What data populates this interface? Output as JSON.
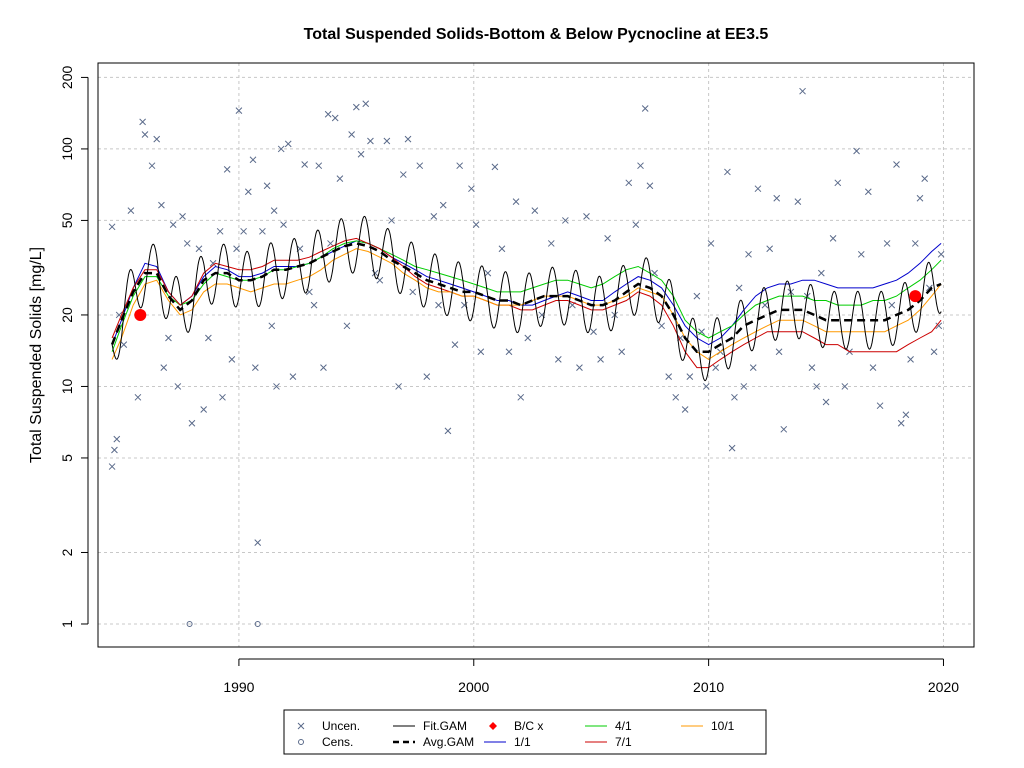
{
  "chart_data": {
    "type": "scatter",
    "title": "Total Suspended Solids-Bottom & Below Pycnocline at EE3.5",
    "ylabel": "Total Suspended Solids [mg/L]",
    "xlabel": "",
    "y_scale": "log",
    "xlim": [
      1984,
      2021.3
    ],
    "ylim": [
      0.8,
      230
    ],
    "x_ticks": [
      1990,
      2000,
      2010,
      2020
    ],
    "y_ticks": [
      1,
      2,
      5,
      10,
      20,
      50,
      100,
      200
    ],
    "grid": true,
    "legend_placement": "bottom",
    "legend": [
      {
        "label": "Uncen.",
        "symbol": "x",
        "color": "#5a6a8a"
      },
      {
        "label": "Cens.",
        "symbol": "circle",
        "color": "#5a6a8a"
      },
      {
        "label": "Fit.GAM",
        "symbol": "line",
        "color": "#000000"
      },
      {
        "label": "Avg.GAM",
        "symbol": "dashed",
        "color": "#000000"
      },
      {
        "label": "B/C x",
        "symbol": "diamond",
        "color": "#ff0000"
      },
      {
        "label": "1/1",
        "symbol": "line",
        "color": "#0000cc"
      },
      {
        "label": "4/1",
        "symbol": "line",
        "color": "#00cc00"
      },
      {
        "label": "7/1",
        "symbol": "line",
        "color": "#cc0000"
      },
      {
        "label": "10/1",
        "symbol": "line",
        "color": "#ff9900"
      }
    ],
    "colors": {
      "points": "#5a6a8a",
      "fit": "#000000",
      "avg": "#000000",
      "bc": "#ff0000",
      "s1": "#0000cc",
      "s4": "#00cc00",
      "s7": "#cc0000",
      "s10": "#ff9900"
    },
    "baseline_change_points": [
      {
        "x": 1985.8,
        "y": 20.0
      },
      {
        "x": 2018.8,
        "y": 24.0
      }
    ],
    "censored_points": [
      {
        "x": 1987.9,
        "y": 1.0
      },
      {
        "x": 1990.8,
        "y": 1.0
      }
    ],
    "uncensored_points": [
      [
        1984.6,
        4.6
      ],
      [
        1984.7,
        5.4
      ],
      [
        1984.8,
        6.0
      ],
      [
        1984.6,
        47
      ],
      [
        1984.9,
        20
      ],
      [
        1985.1,
        15
      ],
      [
        1985.4,
        55
      ],
      [
        1985.7,
        9
      ],
      [
        1985.9,
        130
      ],
      [
        1986.0,
        115
      ],
      [
        1986.3,
        85
      ],
      [
        1986.5,
        110
      ],
      [
        1986.7,
        58
      ],
      [
        1986.8,
        12
      ],
      [
        1987.0,
        16
      ],
      [
        1987.2,
        48
      ],
      [
        1987.4,
        10
      ],
      [
        1987.6,
        52
      ],
      [
        1987.8,
        40
      ],
      [
        1988.0,
        7.0
      ],
      [
        1988.3,
        38
      ],
      [
        1988.5,
        8
      ],
      [
        1988.7,
        16
      ],
      [
        1988.9,
        33
      ],
      [
        1989.2,
        45
      ],
      [
        1989.3,
        9
      ],
      [
        1989.5,
        82
      ],
      [
        1989.7,
        13
      ],
      [
        1989.9,
        38
      ],
      [
        1990.0,
        145
      ],
      [
        1990.2,
        45
      ],
      [
        1990.4,
        66
      ],
      [
        1990.6,
        90
      ],
      [
        1990.7,
        12
      ],
      [
        1990.8,
        2.2
      ],
      [
        1991.0,
        45
      ],
      [
        1991.2,
        70
      ],
      [
        1991.4,
        18
      ],
      [
        1991.5,
        55
      ],
      [
        1991.6,
        10
      ],
      [
        1991.8,
        100
      ],
      [
        1991.9,
        48
      ],
      [
        1992.1,
        105
      ],
      [
        1992.3,
        11
      ],
      [
        1992.6,
        38
      ],
      [
        1992.8,
        86
      ],
      [
        1993.0,
        25
      ],
      [
        1993.2,
        22
      ],
      [
        1993.4,
        85
      ],
      [
        1993.6,
        12
      ],
      [
        1993.8,
        140
      ],
      [
        1993.9,
        40
      ],
      [
        1994.1,
        135
      ],
      [
        1994.3,
        75
      ],
      [
        1994.6,
        18
      ],
      [
        1994.8,
        115
      ],
      [
        1995.0,
        150
      ],
      [
        1995.2,
        95
      ],
      [
        1995.4,
        155
      ],
      [
        1995.6,
        108
      ],
      [
        1995.8,
        30
      ],
      [
        1996.0,
        28
      ],
      [
        1996.3,
        108
      ],
      [
        1996.5,
        50
      ],
      [
        1996.8,
        10
      ],
      [
        1997.0,
        78
      ],
      [
        1997.2,
        110
      ],
      [
        1997.4,
        25
      ],
      [
        1997.7,
        85
      ],
      [
        1998.0,
        11
      ],
      [
        1998.3,
        52
      ],
      [
        1998.5,
        22
      ],
      [
        1998.7,
        58
      ],
      [
        1998.9,
        6.5
      ],
      [
        1999.2,
        15
      ],
      [
        1999.4,
        85
      ],
      [
        1999.6,
        22
      ],
      [
        1999.9,
        68
      ],
      [
        2000.1,
        48
      ],
      [
        2000.3,
        14
      ],
      [
        2000.6,
        30
      ],
      [
        2000.9,
        84
      ],
      [
        2001.2,
        38
      ],
      [
        2001.5,
        14
      ],
      [
        2001.8,
        60
      ],
      [
        2002.0,
        9
      ],
      [
        2002.3,
        16
      ],
      [
        2002.6,
        55
      ],
      [
        2002.9,
        20
      ],
      [
        2003.3,
        40
      ],
      [
        2003.6,
        13
      ],
      [
        2003.9,
        50
      ],
      [
        2004.2,
        22
      ],
      [
        2004.5,
        12
      ],
      [
        2004.8,
        52
      ],
      [
        2005.1,
        17
      ],
      [
        2005.4,
        13
      ],
      [
        2005.7,
        42
      ],
      [
        2006.0,
        20
      ],
      [
        2006.3,
        14
      ],
      [
        2006.6,
        72
      ],
      [
        2006.9,
        48
      ],
      [
        2007.1,
        85
      ],
      [
        2007.3,
        148
      ],
      [
        2007.5,
        70
      ],
      [
        2007.7,
        30
      ],
      [
        2008.0,
        18
      ],
      [
        2008.3,
        11
      ],
      [
        2008.6,
        9
      ],
      [
        2008.8,
        16
      ],
      [
        2009.0,
        8
      ],
      [
        2009.2,
        11
      ],
      [
        2009.5,
        24
      ],
      [
        2009.7,
        17
      ],
      [
        2009.9,
        10
      ],
      [
        2010.1,
        40
      ],
      [
        2010.3,
        12
      ],
      [
        2010.5,
        14
      ],
      [
        2010.8,
        80
      ],
      [
        2011.0,
        5.5
      ],
      [
        2011.1,
        9
      ],
      [
        2011.3,
        26
      ],
      [
        2011.5,
        10
      ],
      [
        2011.7,
        36
      ],
      [
        2011.9,
        12
      ],
      [
        2012.1,
        68
      ],
      [
        2012.4,
        22
      ],
      [
        2012.6,
        38
      ],
      [
        2012.9,
        62
      ],
      [
        2013.0,
        14
      ],
      [
        2013.2,
        6.6
      ],
      [
        2013.5,
        25
      ],
      [
        2013.8,
        60
      ],
      [
        2014.0,
        175
      ],
      [
        2014.2,
        24
      ],
      [
        2014.4,
        12
      ],
      [
        2014.6,
        10
      ],
      [
        2014.8,
        30
      ],
      [
        2015.0,
        8.6
      ],
      [
        2015.3,
        42
      ],
      [
        2015.5,
        72
      ],
      [
        2015.8,
        10
      ],
      [
        2016.0,
        14
      ],
      [
        2016.3,
        98
      ],
      [
        2016.5,
        36
      ],
      [
        2016.8,
        66
      ],
      [
        2017.0,
        12
      ],
      [
        2017.3,
        8.3
      ],
      [
        2017.6,
        40
      ],
      [
        2017.8,
        22
      ],
      [
        2018.0,
        86
      ],
      [
        2018.2,
        7
      ],
      [
        2018.4,
        7.6
      ],
      [
        2018.6,
        13
      ],
      [
        2018.8,
        40
      ],
      [
        2019.0,
        62
      ],
      [
        2019.2,
        75
      ],
      [
        2019.4,
        26
      ],
      [
        2019.6,
        14
      ],
      [
        2019.8,
        18
      ],
      [
        2019.9,
        36
      ]
    ],
    "trend_x": [
      1984.6,
      1985.0,
      1985.5,
      1986.0,
      1986.5,
      1987.0,
      1987.5,
      1988.0,
      1988.5,
      1989.0,
      1989.5,
      1990.0,
      1990.5,
      1991.0,
      1991.5,
      1992.0,
      1992.5,
      1993.0,
      1993.5,
      1994.0,
      1994.5,
      1995.0,
      1995.5,
      1996.0,
      1996.5,
      1997.0,
      1997.5,
      1998.0,
      1998.5,
      1999.0,
      1999.5,
      2000.0,
      2000.5,
      2001.0,
      2001.5,
      2002.0,
      2002.5,
      2003.0,
      2003.5,
      2004.0,
      2004.5,
      2005.0,
      2005.5,
      2006.0,
      2006.5,
      2007.0,
      2007.5,
      2008.0,
      2008.5,
      2009.0,
      2009.5,
      2010.0,
      2010.5,
      2011.0,
      2011.5,
      2012.0,
      2012.5,
      2013.0,
      2013.5,
      2014.0,
      2014.5,
      2015.0,
      2015.5,
      2016.0,
      2016.5,
      2017.0,
      2017.5,
      2018.0,
      2018.5,
      2019.0,
      2019.5,
      2019.9
    ],
    "series": [
      {
        "key": "s1",
        "values": [
          15,
          19,
          26,
          33,
          32,
          25,
          22,
          24,
          29,
          32,
          31,
          29,
          29,
          30,
          32,
          32,
          32,
          33,
          35,
          37,
          39,
          41,
          40,
          38,
          35,
          33,
          31,
          29,
          28,
          27,
          26,
          25,
          24,
          23,
          23,
          22,
          22,
          23,
          24,
          25,
          24,
          23,
          23,
          25,
          27,
          29,
          28,
          26,
          22,
          18,
          16,
          15,
          16,
          18,
          21,
          24,
          26,
          27,
          27,
          28,
          28,
          27,
          26,
          26,
          26,
          26,
          27,
          28,
          30,
          33,
          37,
          40
        ]
      },
      {
        "key": "s4",
        "values": [
          14,
          18,
          24,
          29,
          29,
          24,
          22,
          23,
          27,
          30,
          29,
          28,
          28,
          29,
          31,
          31,
          32,
          33,
          35,
          38,
          40,
          41,
          40,
          38,
          36,
          34,
          32,
          31,
          30,
          29,
          28,
          27,
          26,
          25,
          25,
          25,
          26,
          27,
          28,
          28,
          27,
          26,
          27,
          29,
          31,
          32,
          30,
          28,
          24,
          19,
          17,
          16,
          17,
          18,
          20,
          22,
          23,
          24,
          24,
          24,
          23,
          23,
          22,
          22,
          22,
          23,
          23,
          24,
          26,
          28,
          31,
          34
        ]
      },
      {
        "key": "s7",
        "values": [
          16,
          20,
          26,
          31,
          31,
          25,
          22,
          24,
          30,
          33,
          32,
          31,
          31,
          32,
          34,
          34,
          34,
          35,
          37,
          39,
          41,
          42,
          40,
          38,
          35,
          32,
          29,
          27,
          26,
          25,
          24,
          24,
          23,
          22,
          22,
          21,
          21,
          22,
          23,
          23,
          22,
          21,
          21,
          22,
          23,
          25,
          24,
          22,
          18,
          14,
          12,
          12,
          13,
          14,
          15,
          16,
          17,
          17,
          17,
          17,
          16,
          15,
          15,
          14,
          14,
          14,
          14,
          14,
          15,
          16,
          17,
          19
        ]
      },
      {
        "key": "s10",
        "values": [
          13,
          16,
          22,
          27,
          28,
          23,
          20,
          21,
          25,
          27,
          27,
          26,
          25,
          26,
          27,
          27,
          28,
          29,
          31,
          34,
          36,
          38,
          37,
          35,
          33,
          30,
          28,
          26,
          25,
          25,
          24,
          24,
          23,
          22,
          22,
          22,
          23,
          24,
          24,
          24,
          23,
          22,
          22,
          23,
          24,
          26,
          25,
          24,
          20,
          16,
          14,
          13,
          14,
          15,
          16,
          17,
          18,
          19,
          19,
          19,
          18,
          17,
          17,
          17,
          17,
          17,
          17,
          18,
          19,
          21,
          24,
          27
        ]
      },
      {
        "key": "avg",
        "values": [
          15,
          19,
          25,
          30,
          30,
          24,
          21,
          23,
          28,
          30,
          30,
          28,
          28,
          29,
          31,
          31,
          32,
          33,
          35,
          37,
          39,
          40,
          39,
          37,
          34,
          32,
          30,
          28,
          27,
          26,
          25,
          25,
          24,
          23,
          23,
          22,
          23,
          24,
          24,
          24,
          23,
          22,
          22,
          23,
          25,
          27,
          26,
          24,
          20,
          16,
          14,
          14,
          15,
          16,
          18,
          19,
          20,
          21,
          21,
          21,
          20,
          19,
          19,
          19,
          19,
          19,
          19,
          20,
          21,
          23,
          26,
          27
        ]
      }
    ]
  }
}
